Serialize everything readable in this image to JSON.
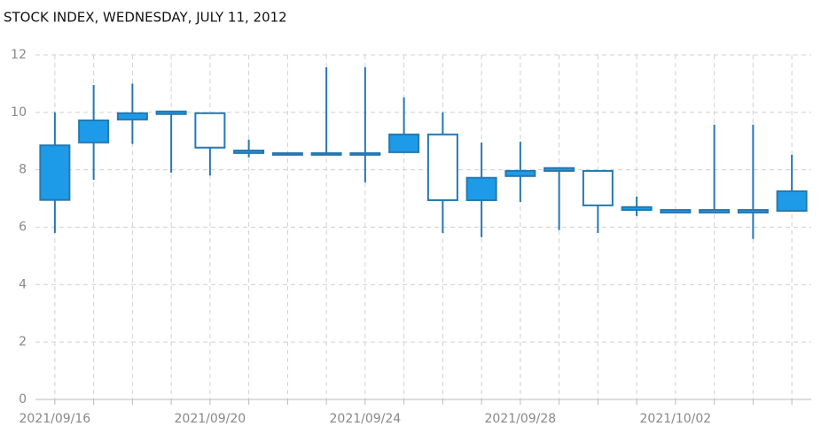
{
  "chart_data": {
    "type": "candlestick",
    "title": "STOCK INDEX, WEDNESDAY, JULY 11, 2012",
    "categories": [
      "2021/09/16",
      null,
      null,
      null,
      "2021/09/20",
      null,
      null,
      null,
      "2021/09/24",
      null,
      null,
      null,
      "2021/09/28",
      null,
      null,
      null,
      "2021/10/02",
      null,
      null,
      null
    ],
    "open": [
      8.85,
      9.72,
      9.97,
      10.03,
      8.77,
      8.67,
      8.58,
      8.58,
      8.58,
      9.23,
      6.94,
      7.72,
      7.96,
      8.06,
      6.76,
      6.7,
      6.6,
      6.6,
      6.6,
      7.25
    ],
    "high": [
      10.0,
      10.95,
      11.0,
      10.05,
      9.97,
      9.05,
      8.58,
      11.57,
      11.57,
      10.52,
      10.0,
      8.95,
      8.98,
      8.06,
      7.96,
      7.07,
      6.6,
      9.57,
      9.57,
      8.52
    ],
    "low": [
      5.8,
      7.65,
      8.9,
      7.9,
      7.8,
      8.43,
      8.52,
      8.52,
      7.56,
      8.61,
      5.8,
      5.65,
      6.88,
      5.9,
      5.8,
      6.39,
      6.51,
      6.51,
      5.59,
      6.57
    ],
    "close": [
      6.95,
      8.95,
      9.75,
      9.94,
      9.97,
      8.58,
      8.52,
      8.52,
      8.52,
      8.61,
      9.23,
      6.94,
      7.78,
      7.96,
      7.96,
      6.6,
      6.51,
      6.51,
      6.51,
      6.57
    ],
    "color": "#1e9be8",
    "edge_color": "#2479b0",
    "ylim": [
      0,
      12
    ],
    "yticks": [
      0,
      2,
      4,
      6,
      8,
      10,
      12
    ],
    "grid": true
  }
}
